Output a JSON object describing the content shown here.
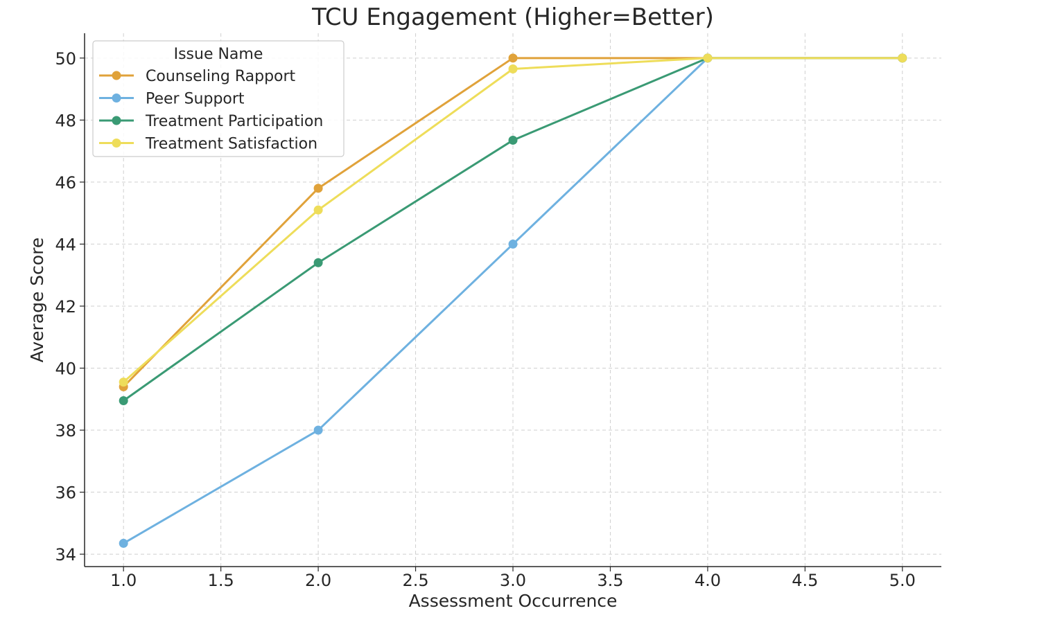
{
  "chart_data": {
    "type": "line",
    "title": "TCU Engagement (Higher=Better)",
    "xlabel": "Assessment Occurrence",
    "ylabel": "Average Score",
    "xlim": [
      0.8,
      5.2
    ],
    "ylim": [
      33.6,
      50.8
    ],
    "xticks": [
      1.0,
      1.5,
      2.0,
      2.5,
      3.0,
      3.5,
      4.0,
      4.5,
      5.0
    ],
    "xtick_labels": [
      "1.0",
      "1.5",
      "2.0",
      "2.5",
      "3.0",
      "3.5",
      "4.0",
      "4.5",
      "5.0"
    ],
    "yticks": [
      34,
      36,
      38,
      40,
      42,
      44,
      46,
      48,
      50
    ],
    "ytick_labels": [
      "34",
      "36",
      "38",
      "40",
      "42",
      "44",
      "46",
      "48",
      "50"
    ],
    "grid": true,
    "legend_title": "Issue Name",
    "legend_position": "top-left",
    "series": [
      {
        "name": "Counseling Rapport",
        "color": "#E0A23A",
        "x": [
          1,
          2,
          3,
          4,
          5
        ],
        "values": [
          39.4,
          45.8,
          50.0,
          50.0,
          50.0
        ]
      },
      {
        "name": "Peer Support",
        "color": "#6EB1E0",
        "x": [
          1,
          2,
          3,
          4,
          5
        ],
        "values": [
          34.35,
          38.0,
          44.0,
          50.0,
          50.0
        ]
      },
      {
        "name": "Treatment Participation",
        "color": "#3A9A74",
        "x": [
          1,
          2,
          3,
          4,
          5
        ],
        "values": [
          38.95,
          43.4,
          47.35,
          50.0,
          50.0
        ]
      },
      {
        "name": "Treatment Satisfaction",
        "color": "#EEDD5A",
        "x": [
          1,
          2,
          3,
          4,
          5
        ],
        "values": [
          39.55,
          45.1,
          49.65,
          50.0,
          50.0
        ]
      }
    ]
  }
}
